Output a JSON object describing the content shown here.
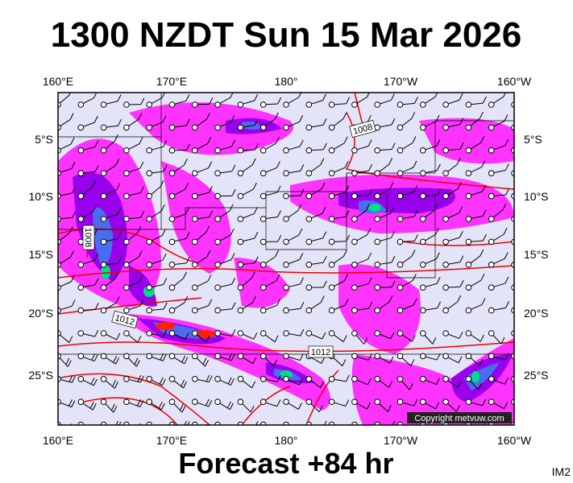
{
  "header": {
    "title": "1300 NZDT Sun 15 Mar 2026"
  },
  "map": {
    "top_labels": [
      "160°E",
      "170°E",
      "180°",
      "170°W",
      "160°W"
    ],
    "bottom_labels": [
      "160°E",
      "170°E",
      "180°",
      "170°W",
      "160°W"
    ],
    "left_labels": [
      "5°S",
      "10°S",
      "15°S",
      "20°S",
      "25°S"
    ],
    "right_labels": [
      "5°S",
      "10°S",
      "15°S",
      "20°S",
      "25°S"
    ],
    "isobar_labels": [
      "1008",
      "1008",
      "1012",
      "1012"
    ],
    "copyright": "Copyright metvuw.com"
  },
  "footer": {
    "forecast": "Forecast +84 hr",
    "code": "IM2"
  }
}
